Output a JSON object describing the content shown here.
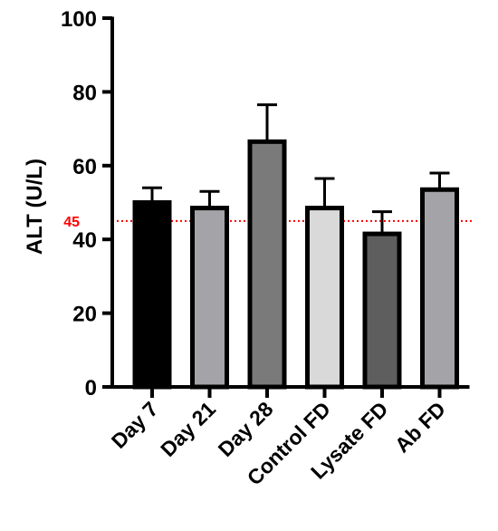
{
  "chart_data": {
    "type": "bar",
    "title": "",
    "xlabel": "",
    "ylabel": "ALT (U/L)",
    "ylim": [
      0,
      100
    ],
    "yticks": [
      0,
      20,
      40,
      60,
      80,
      100
    ],
    "categories": [
      "Day 7",
      "Day 21",
      "Day 28",
      "Control FD",
      "Lysate FD",
      "Ab FD"
    ],
    "values": [
      50,
      48.5,
      66.5,
      48.5,
      41.5,
      53.5
    ],
    "error_upper": [
      54,
      53,
      76.5,
      56.5,
      47.5,
      58
    ],
    "bar_colors": [
      "#000000",
      "#a3a3a8",
      "#7a7a7a",
      "#d9d9d9",
      "#5e5e5e",
      "#a3a3a8"
    ],
    "reference_line": {
      "value": 45,
      "label": "45",
      "color": "#ff0000",
      "style": "dotted"
    },
    "grid": false,
    "legend": "none"
  }
}
